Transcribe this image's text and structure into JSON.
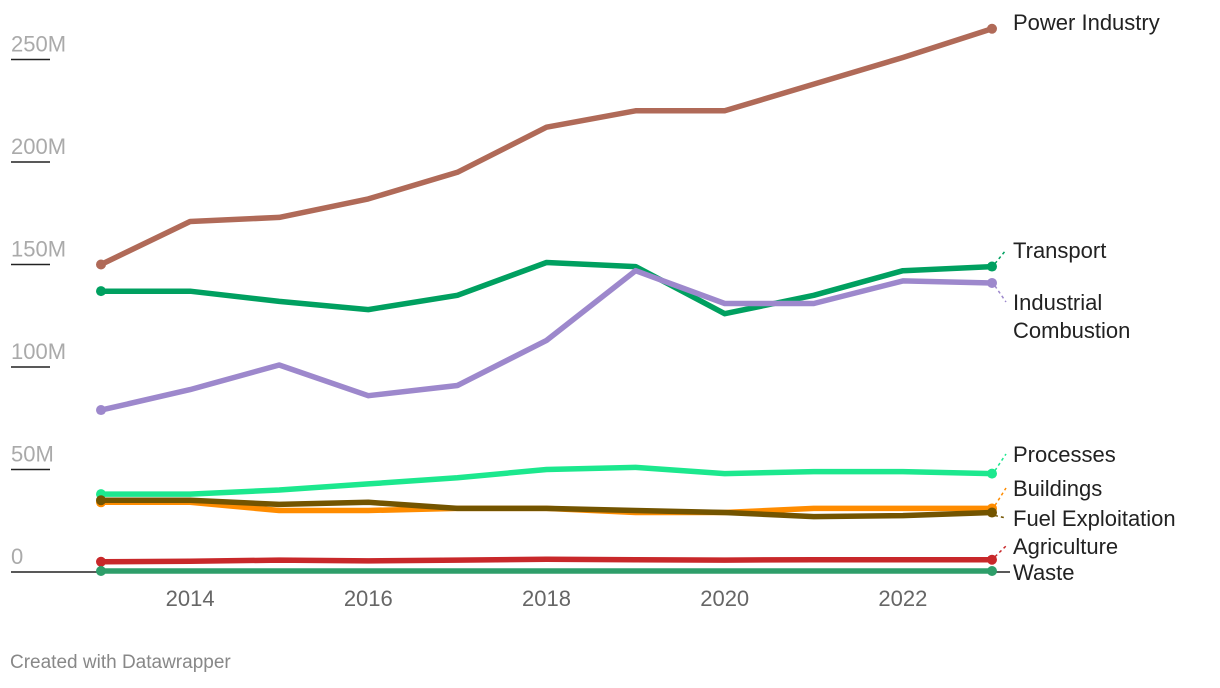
{
  "chart_data": {
    "type": "line",
    "x": [
      2013,
      2014,
      2015,
      2016,
      2017,
      2018,
      2019,
      2020,
      2021,
      2022,
      2023
    ],
    "xticks": [
      "2014",
      "2016",
      "2018",
      "2020",
      "2022"
    ],
    "xtick_values": [
      2014,
      2016,
      2018,
      2020,
      2022
    ],
    "yticks": [
      "0",
      "50M",
      "100M",
      "150M",
      "200M",
      "250M"
    ],
    "ytick_values": [
      0,
      50000000,
      100000000,
      150000000,
      200000000,
      250000000
    ],
    "ylim": [
      0,
      270000000
    ],
    "xlim": [
      2013,
      2023
    ],
    "grid": false,
    "series": [
      {
        "name": "Power Industry",
        "label_lines": [
          "Power Industry"
        ],
        "color": "#b06a58",
        "values": [
          150000000,
          171000000,
          173000000,
          182000000,
          195000000,
          217000000,
          225000000,
          225000000,
          238000000,
          251000000,
          265000000
        ]
      },
      {
        "name": "Transport",
        "label_lines": [
          "Transport"
        ],
        "color": "#00a060",
        "values": [
          137000000,
          137000000,
          132000000,
          128000000,
          135000000,
          151000000,
          149000000,
          126000000,
          135000000,
          147000000,
          149000000
        ]
      },
      {
        "name": "Industrial Combustion",
        "label_lines": [
          "Industrial",
          "Combustion"
        ],
        "color": "#9d88cc",
        "values": [
          79000000,
          89000000,
          101000000,
          86000000,
          91000000,
          113000000,
          147000000,
          131000000,
          131000000,
          142000000,
          141000000
        ]
      },
      {
        "name": "Processes",
        "label_lines": [
          "Processes"
        ],
        "color": "#1ce88e",
        "values": [
          38000000,
          38000000,
          40000000,
          43000000,
          46000000,
          50000000,
          51000000,
          48000000,
          49000000,
          49000000,
          48000000
        ]
      },
      {
        "name": "Buildings",
        "label_lines": [
          "Buildings"
        ],
        "color": "#ff8c00",
        "values": [
          34000000,
          34000000,
          30000000,
          30000000,
          31000000,
          31000000,
          29000000,
          29000000,
          31000000,
          31000000,
          31000000
        ]
      },
      {
        "name": "Fuel Exploitation",
        "label_lines": [
          "Fuel Exploitation"
        ],
        "color": "#735400",
        "values": [
          35000000,
          35000000,
          33000000,
          34000000,
          31000000,
          31000000,
          30000000,
          29000000,
          27000000,
          27500000,
          29000000
        ]
      },
      {
        "name": "Agriculture",
        "label_lines": [
          "Agriculture"
        ],
        "color": "#c8282a",
        "values": [
          5000000,
          5200000,
          5800000,
          5400000,
          5800000,
          6200000,
          6000000,
          5800000,
          6000000,
          6000000,
          6000000
        ]
      },
      {
        "name": "Waste",
        "label_lines": [
          "Waste"
        ],
        "color": "#2e9e6a",
        "values": [
          500000,
          500000,
          500000,
          500000,
          500000,
          500000,
          500000,
          500000,
          500000,
          500000,
          500000
        ]
      }
    ]
  },
  "footer": {
    "credit": "Created with Datawrapper"
  }
}
